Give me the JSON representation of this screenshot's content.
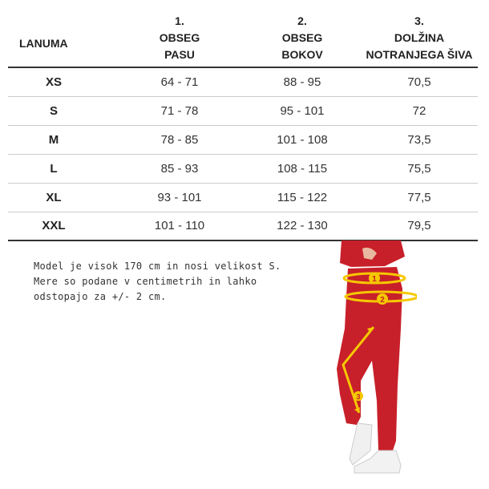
{
  "table": {
    "headers": [
      {
        "lines": [
          "LANUMA"
        ]
      },
      {
        "lines": [
          "1.",
          "OBSEG",
          "PASU"
        ]
      },
      {
        "lines": [
          "2.",
          "OBSEG",
          "BOKOV"
        ]
      },
      {
        "lines": [
          "3.",
          "DOLŽINA",
          "NOTRANJEGA ŠIVA"
        ]
      }
    ],
    "rows": [
      [
        "XS",
        "64 - 71",
        "88 - 95",
        "70,5"
      ],
      [
        "S",
        "71 - 78",
        "95 - 101",
        "72"
      ],
      [
        "M",
        "78 - 85",
        "101 - 108",
        "73,5"
      ],
      [
        "L",
        "85 - 93",
        "108 - 115",
        "75,5"
      ],
      [
        "XL",
        "93 - 101",
        "115 - 122",
        "77,5"
      ],
      [
        "XXL",
        "101 - 110",
        "122 - 130",
        "79,5"
      ]
    ]
  },
  "note": {
    "lines": [
      "Model je visok 170 cm in nosi velikost S.",
      "Mere so podane v centimetrih in lahko",
      "odstopajo za +/- 2 cm."
    ]
  },
  "figure": {
    "markers": [
      "1",
      "2",
      "3"
    ],
    "colors": {
      "pants": "#c8202a",
      "marker": "#f5c800",
      "shoe": "#f2f2f2"
    }
  }
}
